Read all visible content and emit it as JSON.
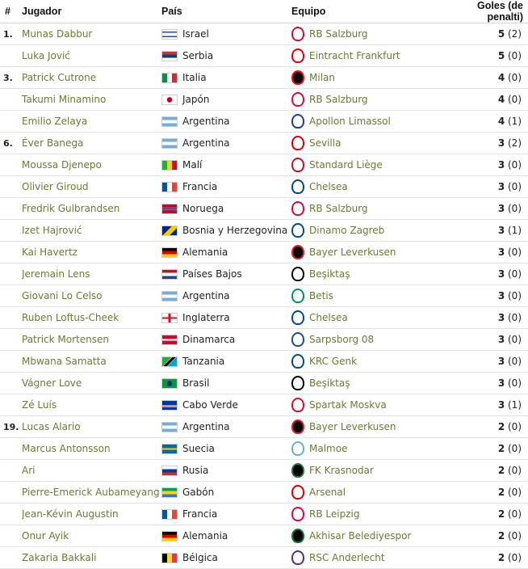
{
  "headers": {
    "rank": "#",
    "player": "Jugador",
    "country": "País",
    "club": "Equipo",
    "goals": "Goles (de penalti)"
  },
  "rows": [
    {
      "rank": "1.",
      "player": "Munas Dabbur",
      "country": "Israel",
      "flag": "israel-flag",
      "club": "RB Salzburg",
      "crest": "rb-salzburg-crest",
      "goals": "5",
      "pen": "(2)"
    },
    {
      "rank": "",
      "player": "Luka Jović",
      "country": "Serbia",
      "flag": "serbia-flag",
      "club": "Eintracht Frankfurt",
      "crest": "eintracht-frankfurt-crest",
      "goals": "5",
      "pen": "(0)"
    },
    {
      "rank": "3.",
      "player": "Patrick Cutrone",
      "country": "Italia",
      "flag": "italy-flag",
      "club": "Milan",
      "crest": "milan-crest",
      "goals": "4",
      "pen": "(0)"
    },
    {
      "rank": "",
      "player": "Takumi Minamino",
      "country": "Japón",
      "flag": "japan-flag",
      "club": "RB Salzburg",
      "crest": "rb-salzburg-crest",
      "goals": "4",
      "pen": "(0)"
    },
    {
      "rank": "",
      "player": "Emilio Zelaya",
      "country": "Argentina",
      "flag": "argentina-flag",
      "club": "Apollon Limassol",
      "crest": "apollon-limassol-crest",
      "goals": "4",
      "pen": "(1)"
    },
    {
      "rank": "6.",
      "player": "Éver Banega",
      "country": "Argentina",
      "flag": "argentina-flag",
      "club": "Sevilla",
      "crest": "sevilla-crest",
      "goals": "3",
      "pen": "(2)"
    },
    {
      "rank": "",
      "player": "Moussa Djenepo",
      "country": "Malí",
      "flag": "mali-flag",
      "club": "Standard Liège",
      "crest": "standard-liege-crest",
      "goals": "3",
      "pen": "(0)"
    },
    {
      "rank": "",
      "player": "Olivier Giroud",
      "country": "Francia",
      "flag": "france-flag",
      "club": "Chelsea",
      "crest": "chelsea-crest",
      "goals": "3",
      "pen": "(0)"
    },
    {
      "rank": "",
      "player": "Fredrik Gulbrandsen",
      "country": "Noruega",
      "flag": "norway-flag",
      "club": "RB Salzburg",
      "crest": "rb-salzburg-crest",
      "goals": "3",
      "pen": "(0)"
    },
    {
      "rank": "",
      "player": "Izet Hajrović",
      "country": "Bosnia y Herzegovina",
      "flag": "bosnia-flag",
      "club": "Dinamo Zagreb",
      "crest": "dinamo-zagreb-crest",
      "goals": "3",
      "pen": "(1)"
    },
    {
      "rank": "",
      "player": "Kai Havertz",
      "country": "Alemania",
      "flag": "germany-flag",
      "club": "Bayer Leverkusen",
      "crest": "bayer-leverkusen-crest",
      "goals": "3",
      "pen": "(0)"
    },
    {
      "rank": "",
      "player": "Jeremain Lens",
      "country": "Países Bajos",
      "flag": "netherlands-flag",
      "club": "Beşiktaş",
      "crest": "besiktas-crest",
      "goals": "3",
      "pen": "(0)"
    },
    {
      "rank": "",
      "player": "Giovani Lo Celso",
      "country": "Argentina",
      "flag": "argentina-flag",
      "club": "Betis",
      "crest": "betis-crest",
      "goals": "3",
      "pen": "(0)"
    },
    {
      "rank": "",
      "player": "Ruben Loftus-Cheek",
      "country": "Inglaterra",
      "flag": "england-flag",
      "club": "Chelsea",
      "crest": "chelsea-crest",
      "goals": "3",
      "pen": "(0)"
    },
    {
      "rank": "",
      "player": "Patrick Mortensen",
      "country": "Dinamarca",
      "flag": "denmark-flag",
      "club": "Sarpsborg 08",
      "crest": "sarpsborg-crest",
      "goals": "3",
      "pen": "(0)"
    },
    {
      "rank": "",
      "player": "Mbwana Samatta",
      "country": "Tanzania",
      "flag": "tanzania-flag",
      "club": "KRC Genk",
      "crest": "genk-crest",
      "goals": "3",
      "pen": "(0)"
    },
    {
      "rank": "",
      "player": "Vágner Love",
      "country": "Brasil",
      "flag": "brazil-flag",
      "club": "Beşiktaş",
      "crest": "besiktas-crest",
      "goals": "3",
      "pen": "(0)"
    },
    {
      "rank": "",
      "player": "Zé Luís",
      "country": "Cabo Verde",
      "flag": "cape-verde-flag",
      "club": "Spartak Moskva",
      "crest": "spartak-moskva-crest",
      "goals": "3",
      "pen": "(1)"
    },
    {
      "rank": "19.",
      "player": "Lucas Alario",
      "country": "Argentina",
      "flag": "argentina-flag",
      "club": "Bayer Leverkusen",
      "crest": "bayer-leverkusen-crest",
      "goals": "2",
      "pen": "(0)"
    },
    {
      "rank": "",
      "player": "Marcus Antonsson",
      "country": "Suecia",
      "flag": "sweden-flag",
      "club": "Malmoe",
      "crest": "malmo-crest",
      "goals": "2",
      "pen": "(0)"
    },
    {
      "rank": "",
      "player": "Ari",
      "country": "Rusia",
      "flag": "russia-flag",
      "club": "FK Krasnodar",
      "crest": "krasnodar-crest",
      "goals": "2",
      "pen": "(0)"
    },
    {
      "rank": "",
      "player": "Pierre-Emerick Aubameyang",
      "country": "Gabón",
      "flag": "gabon-flag",
      "club": "Arsenal",
      "crest": "arsenal-crest",
      "goals": "2",
      "pen": "(0)"
    },
    {
      "rank": "",
      "player": "Jean-Kévin Augustin",
      "country": "Francia",
      "flag": "france-flag",
      "club": "RB Leipzig",
      "crest": "rb-leipzig-crest",
      "goals": "2",
      "pen": "(0)"
    },
    {
      "rank": "",
      "player": "Onur Ayik",
      "country": "Alemania",
      "flag": "germany-flag",
      "club": "Akhisar Belediyespor",
      "crest": "akhisar-crest",
      "goals": "2",
      "pen": "(0)"
    },
    {
      "rank": "",
      "player": "Zakaria Bakkali",
      "country": "Bélgica",
      "flag": "belgium-flag",
      "club": "RSC Anderlecht",
      "crest": "anderlecht-crest",
      "goals": "2",
      "pen": "(0)"
    }
  ],
  "colors": {
    "link": "#6b7a33"
  }
}
